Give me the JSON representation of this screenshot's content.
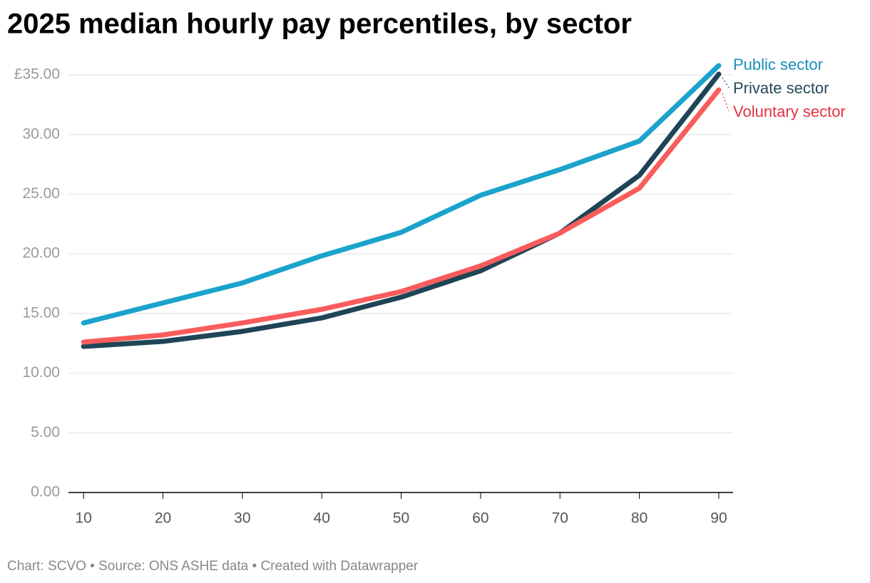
{
  "chart_data": {
    "type": "line",
    "title": "2025 median hourly pay percentiles, by sector",
    "source": "Chart: SCVO • Source: ONS ASHE data • Created with Datawrapper",
    "x": [
      10,
      20,
      30,
      40,
      50,
      60,
      70,
      80,
      90
    ],
    "xlim": [
      8.1,
      91.8
    ],
    "xticks": [
      10,
      20,
      30,
      40,
      50,
      60,
      70,
      80,
      90
    ],
    "ylim": [
      0,
      35
    ],
    "yticks": [
      {
        "value": 0,
        "label": "0.00"
      },
      {
        "value": 5,
        "label": "5.00"
      },
      {
        "value": 10,
        "label": "10.00"
      },
      {
        "value": 15,
        "label": "15.00"
      },
      {
        "value": 20,
        "label": "20.00"
      },
      {
        "value": 25,
        "label": "25.00"
      },
      {
        "value": 30,
        "label": "30.00"
      },
      {
        "value": 35,
        "label": "£35.00"
      }
    ],
    "grid": true,
    "series": [
      {
        "name": "Public sector",
        "color": "#1aa3cc",
        "label_color": "#1a8fb8",
        "values": [
          14.21,
          15.89,
          17.56,
          19.83,
          21.8,
          24.91,
          27.06,
          29.45,
          35.78
        ]
      },
      {
        "name": "Private sector",
        "color": "#1f4456",
        "label_color": "#24495a",
        "values": [
          12.24,
          12.66,
          13.5,
          14.63,
          16.37,
          18.58,
          21.74,
          26.58,
          35.06
        ]
      },
      {
        "name": "Voluntary sector",
        "color": "#fa5c5c",
        "label_color": "#e2343f",
        "values": [
          12.6,
          13.2,
          14.21,
          15.35,
          16.84,
          18.99,
          21.74,
          25.5,
          33.74
        ]
      }
    ]
  }
}
